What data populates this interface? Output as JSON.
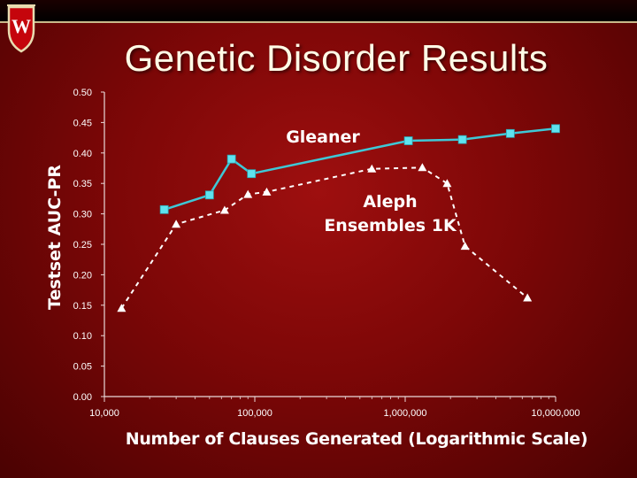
{
  "slide": {
    "title": "Genetic Disorder Results",
    "logo_letter": "W"
  },
  "colors": {
    "background": "#8b0a0a",
    "gleaner_line": "#3ec8d6",
    "gleaner_marker": "#5fe3ef",
    "aleph_line": "#ffffff",
    "text": "#ffffff",
    "title": "#fffbe6"
  },
  "chart_data": {
    "type": "line",
    "x_scale": "log",
    "xlim": [
      10000,
      10000000
    ],
    "ylim": [
      0,
      0.5
    ],
    "xlabel": "Number of Clauses Generated (Logarithmic Scale)",
    "ylabel": "Testset AUC-PR",
    "x_ticks": [
      10000,
      100000,
      1000000,
      10000000
    ],
    "x_tick_labels": [
      "10,000",
      "100,000",
      "1,000,000",
      "10,000,000"
    ],
    "y_ticks": [
      0,
      0.05,
      0.1,
      0.15,
      0.2,
      0.25,
      0.3,
      0.35,
      0.4,
      0.45,
      0.5
    ],
    "y_tick_labels": [
      "0.00",
      "0.05",
      "0.10",
      "0.15",
      "0.20",
      "0.25",
      "0.30",
      "0.35",
      "0.40",
      "0.45",
      "0.50"
    ],
    "grid": false,
    "series": [
      {
        "name": "Gleaner",
        "style": "solid",
        "marker": "square",
        "x": [
          25000,
          50000,
          70000,
          95000,
          1050000,
          2400000,
          5000000,
          10000000
        ],
        "y": [
          0.307,
          0.331,
          0.39,
          0.366,
          0.42,
          0.422,
          0.432,
          0.44
        ]
      },
      {
        "name": "Aleph Ensembles 1K",
        "style": "dashed",
        "marker": "triangle",
        "x": [
          13000,
          30000,
          63000,
          90000,
          120000,
          600000,
          1300000,
          1900000,
          2500000,
          6500000
        ],
        "y": [
          0.145,
          0.283,
          0.306,
          0.332,
          0.336,
          0.374,
          0.376,
          0.35,
          0.247,
          0.162
        ]
      }
    ],
    "annotations": [
      "Gleaner",
      "Aleph",
      "Ensembles 1K"
    ]
  }
}
